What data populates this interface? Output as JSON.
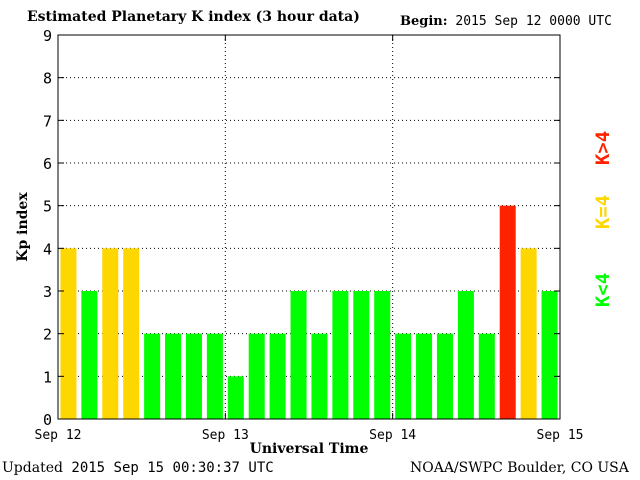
{
  "header": {
    "title": "Estimated Planetary K index (3 hour data)",
    "begin_label": "Begin:",
    "begin_value": "2015 Sep 12 0000 UTC"
  },
  "footer": {
    "updated_label": "Updated",
    "updated_value": "2015 Sep 15 00:30:37 UTC",
    "credit": "NOAA/SWPC Boulder, CO USA"
  },
  "colors": {
    "below_4": "#00ff00",
    "equal_4": "#ffd700",
    "above_4": "#ff2200"
  },
  "chart_data": {
    "type": "bar",
    "title": "Estimated Planetary K index (3 hour data)",
    "xlabel": "Universal Time",
    "ylabel": "Kp index",
    "ylim": [
      0,
      9
    ],
    "yticks": [
      0,
      1,
      2,
      3,
      4,
      5,
      6,
      7,
      8,
      9
    ],
    "xticks": [
      "Sep 12",
      "Sep 13",
      "Sep 14",
      "Sep 15"
    ],
    "grid": true,
    "values": [
      4,
      3,
      4,
      4,
      2,
      2,
      2,
      2,
      1,
      2,
      2,
      3,
      2,
      3,
      3,
      3,
      2,
      2,
      2,
      3,
      2,
      5,
      4,
      3
    ],
    "legend": [
      "K<4",
      "K=4",
      "K>4"
    ]
  }
}
